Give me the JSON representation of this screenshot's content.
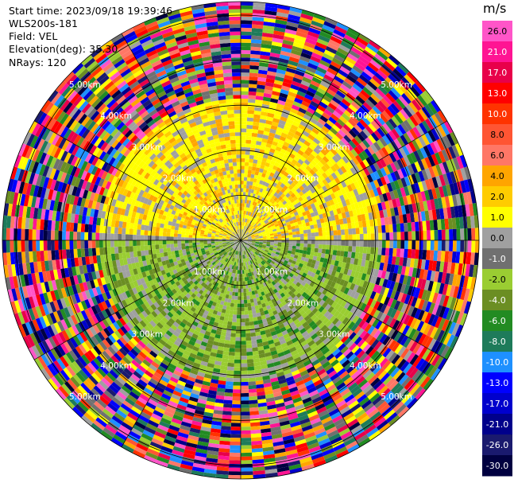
{
  "header": {
    "start_time": "Start time: 2023/09/18 19:39:46",
    "instrument": "WLS200s-181",
    "field": "Field: VEL",
    "elevation": "Elevation(deg): 35.30",
    "nrays": "NRays: 120"
  },
  "colorbar": {
    "unit": "m/s",
    "ticks": [
      "26.0",
      "21.0",
      "17.0",
      "13.0",
      "10.0",
      "8.0",
      "6.0",
      "4.0",
      "2.0",
      "1.0",
      "0.0",
      "-1.0",
      "-2.0",
      "-4.0",
      "-6.0",
      "-8.0",
      "-10.0",
      "-13.0",
      "-17.0",
      "-21.0",
      "-26.0",
      "-30.0"
    ],
    "colors": [
      "#ff55c8",
      "#ff1493",
      "#e8004a",
      "#ff0000",
      "#ff3300",
      "#ff5533",
      "#ff7766",
      "#ffa500",
      "#ffcc00",
      "#ffff00",
      "#a0a0a0",
      "#707070",
      "#9acd32",
      "#6b8e23",
      "#228b22",
      "#1e7b5a",
      "#1e90ff",
      "#0000ff",
      "#0000cd",
      "#00008b",
      "#1a1a6e",
      "#000040"
    ]
  },
  "chart_data": {
    "type": "ppi",
    "field": "VEL",
    "units": "m/s",
    "nrays": 120,
    "max_range_km": 5.3,
    "range_rings_km": [
      1.0,
      2.0,
      3.0,
      4.0,
      5.0
    ],
    "ring_labels": [
      "1.00km",
      "2.00km",
      "3.00km",
      "4.00km",
      "5.00km"
    ],
    "value_range": [
      -30,
      26
    ],
    "pattern": {
      "near_north_half": "positive velocities ~1–4 m/s (yellow/orange)",
      "near_south_half": "negative velocities ~-2 to -6 m/s (green)",
      "far_ranges": "noisy values across full range"
    }
  }
}
